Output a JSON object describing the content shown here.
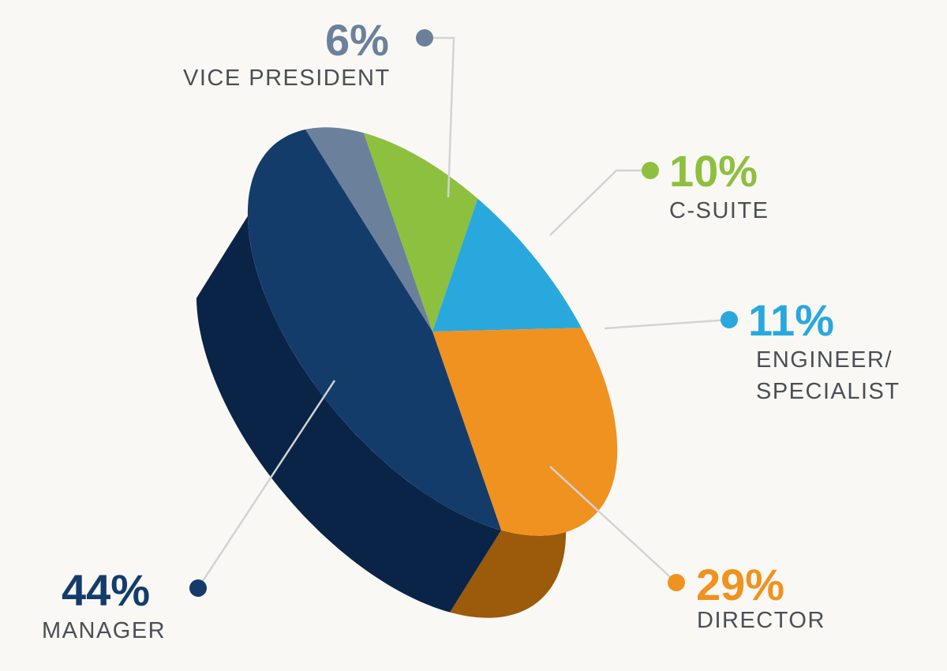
{
  "chart_data": {
    "type": "pie",
    "slices": [
      {
        "label": "VICE PRESIDENT",
        "label_lines": [
          "VICE PRESIDENT"
        ],
        "value": 6,
        "value_label": "6%",
        "color": "#6b819b",
        "side_color": "#4c6078"
      },
      {
        "label": "C-SUITE",
        "label_lines": [
          "C-SUITE"
        ],
        "value": 10,
        "value_label": "10%",
        "color": "#8dc03f",
        "side_color": "#5f8a22"
      },
      {
        "label": "ENGINEER/ SPECIALIST",
        "label_lines": [
          "ENGINEER/",
          "SPECIALIST"
        ],
        "value": 11,
        "value_label": "11%",
        "color": "#29a8de",
        "side_color": "#1a74a2"
      },
      {
        "label": "DIRECTOR",
        "label_lines": [
          "DIRECTOR"
        ],
        "value": 29,
        "value_label": "29%",
        "color": "#f0921f",
        "side_color": "#9c5a0b"
      },
      {
        "label": "MANAGER",
        "label_lines": [
          "MANAGER"
        ],
        "value": 44,
        "value_label": "44%",
        "color": "#143c6b",
        "side_color": "#0a2448"
      }
    ]
  }
}
